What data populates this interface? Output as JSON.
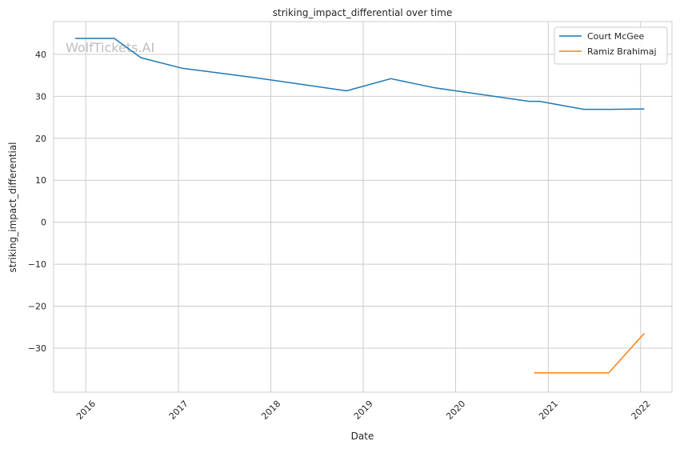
{
  "chart_data": {
    "type": "line",
    "title": "striking_impact_differential over time",
    "xlabel": "Date",
    "ylabel": "striking_impact_differential",
    "watermark": "WolfTickets.AI",
    "x_ticks": [
      "2016",
      "2017",
      "2018",
      "2019",
      "2020",
      "2021",
      "2022"
    ],
    "y_ticks": [
      40,
      30,
      20,
      10,
      0,
      -10,
      -20,
      -30
    ],
    "xlim": [
      "2015-08-27",
      "2022-05-05"
    ],
    "ylim": [
      -40.5,
      47.8
    ],
    "grid": true,
    "legend_position": "top-right",
    "series": [
      {
        "name": "Court McGee",
        "color": "#1f77b4",
        "points": [
          [
            "2015-11-21",
            43.8
          ],
          [
            "2016-04-23",
            43.8
          ],
          [
            "2016-08-06",
            39.2
          ],
          [
            "2017-01-15",
            36.7
          ],
          [
            "2017-11-04",
            34.4
          ],
          [
            "2018-10-27",
            31.3
          ],
          [
            "2019-04-20",
            34.2
          ],
          [
            "2019-10-12",
            32.0
          ],
          [
            "2020-10-17",
            28.8
          ],
          [
            "2020-11-28",
            28.8
          ],
          [
            "2021-05-22",
            26.9
          ],
          [
            "2021-09-04",
            26.9
          ],
          [
            "2022-01-15",
            27.0
          ]
        ]
      },
      {
        "name": "Ramiz Brahimaj",
        "color": "#ff7f0e",
        "points": [
          [
            "2020-11-07",
            -35.9
          ],
          [
            "2021-08-28",
            -35.9
          ],
          [
            "2022-01-15",
            -26.5
          ]
        ]
      }
    ]
  }
}
